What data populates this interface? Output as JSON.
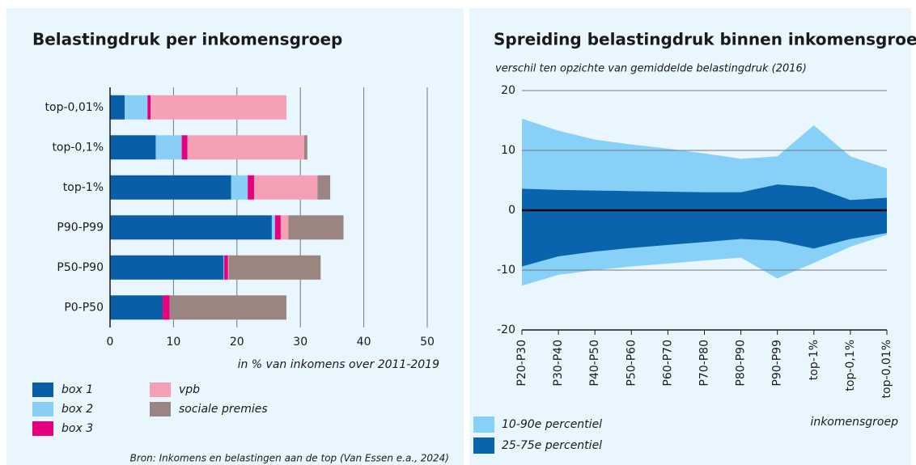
{
  "chart_data": [
    {
      "type": "bar",
      "orientation": "horizontal",
      "stacked": true,
      "title": "Belastingdruk per inkomensgroep",
      "categories": [
        "top-0,01%",
        "top-0,1%",
        "top-1%",
        "P90-P99",
        "P50-P90",
        "P0-P50"
      ],
      "series": [
        {
          "name": "box 1",
          "color": "#0a5ea8",
          "values": [
            2.3,
            7.2,
            19.1,
            25.5,
            17.9,
            8.3
          ]
        },
        {
          "name": "box 2",
          "color": "#87cff5",
          "values": [
            3.6,
            4.1,
            2.6,
            0.5,
            0.1,
            0
          ]
        },
        {
          "name": "box 3",
          "color": "#e6007e",
          "values": [
            0.5,
            0.9,
            1.0,
            0.9,
            0.6,
            1.1
          ]
        },
        {
          "name": "vpb",
          "color": "#f5a0b4",
          "values": [
            21.4,
            18.4,
            10.0,
            1.2,
            0.1,
            0
          ]
        },
        {
          "name": "sociale premies",
          "color": "#9a8580",
          "values": [
            0,
            0.5,
            2.0,
            8.7,
            14.5,
            18.4
          ]
        }
      ],
      "xlim": [
        0,
        50
      ],
      "xticks": [
        0,
        10,
        20,
        30,
        40,
        50
      ],
      "grid": true,
      "xlabel": "in % van inkomens over 2011-2019",
      "source": "Bron: Inkomens en belastingen aan de top (Van Essen e.a., 2024)"
    },
    {
      "type": "band",
      "title": "Spreiding belastingdruk binnen inkomensgroep",
      "subtitle": "verschil ten opzichte van gemiddelde belastingdruk (2016)",
      "categories": [
        "P20-P30",
        "P30-P40",
        "P40-P50",
        "P50-P60",
        "P60-P70",
        "P70-P80",
        "P80-P90",
        "P90-P99",
        "top-1%",
        "top-0,1%",
        "top-0,01%"
      ],
      "series": [
        {
          "name": "10-90e percentiel",
          "color": "#87d0f8",
          "high": [
            15.3,
            13.3,
            11.8,
            11.0,
            10.3,
            9.5,
            8.6,
            9.0,
            14.2,
            9.0,
            7.0
          ],
          "low": [
            -12.6,
            -10.8,
            -10.0,
            -9.4,
            -8.9,
            -8.4,
            -7.9,
            -11.4,
            -8.8,
            -6.1,
            -4.1
          ]
        },
        {
          "name": "25-75e percentiel",
          "color": "#0a63ad",
          "high": [
            3.6,
            3.4,
            3.3,
            3.2,
            3.1,
            3.0,
            3.0,
            4.3,
            3.9,
            1.7,
            2.1
          ],
          "low": [
            -9.4,
            -7.7,
            -6.9,
            -6.3,
            -5.8,
            -5.3,
            -4.8,
            -5.1,
            -6.4,
            -4.8,
            -3.8
          ]
        }
      ],
      "ylim": [
        -20,
        20
      ],
      "yticks": [
        -20,
        -10,
        0,
        10,
        20
      ],
      "grid": true,
      "xlabel": "inkomensgroep"
    }
  ]
}
